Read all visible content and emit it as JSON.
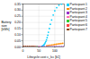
{
  "chart_data": {
    "type": "scatter",
    "xlabel": "Lifecycle cost c_lcc [k€]",
    "ylabel": "Battery\nsize\n[kWh]",
    "xlim": [
      0,
      130
    ],
    "ylim": [
      0,
      0.35
    ],
    "xticks": [
      0,
      50,
      100
    ],
    "yticks": [
      {
        "value": 0.0,
        "label": "0.00"
      },
      0.05,
      {
        "value": 0.1,
        "label": "0.10"
      },
      0.15,
      {
        "value": 0.2,
        "label": "0.20"
      },
      0.25,
      {
        "value": 0.3,
        "label": "0.30"
      },
      0.35
    ],
    "grid": true,
    "series": [
      {
        "name": "Participant 1",
        "color": "#00cfff",
        "x": [
          60,
          62,
          64,
          66,
          68,
          70,
          72,
          74,
          76,
          78,
          80,
          83,
          86,
          90,
          95,
          100,
          106,
          113,
          121
        ],
        "values": [
          0.005,
          0.008,
          0.012,
          0.018,
          0.025,
          0.034,
          0.045,
          0.058,
          0.075,
          0.095,
          0.12,
          0.15,
          0.185,
          0.22,
          0.26,
          0.295,
          0.32,
          0.34,
          0.35
        ]
      },
      {
        "name": "Participant 2",
        "color": "#ff8c00",
        "x": [
          75,
          80,
          85,
          90,
          95,
          100,
          105,
          110,
          115,
          120,
          125
        ],
        "values": [
          0.01,
          0.012,
          0.014,
          0.016,
          0.018,
          0.02,
          0.022,
          0.024,
          0.026,
          0.028,
          0.03
        ]
      },
      {
        "name": "Participant 3",
        "color": "#9932cc",
        "x": [
          2,
          8,
          14,
          20,
          26,
          32,
          38,
          44,
          50,
          56,
          62,
          68,
          74,
          80,
          86,
          92,
          98,
          104,
          110,
          116,
          122,
          128
        ],
        "values": [
          0.002,
          0.002,
          0.002,
          0.002,
          0.002,
          0.002,
          0.002,
          0.002,
          0.002,
          0.002,
          0.002,
          0.002,
          0.002,
          0.002,
          0.002,
          0.002,
          0.002,
          0.002,
          0.002,
          0.002,
          0.002,
          0.002
        ]
      },
      {
        "name": "Participant 4",
        "color": "#ff69b4",
        "x": [
          2,
          8,
          14,
          20,
          26,
          32,
          38,
          44,
          50
        ],
        "values": [
          0.002,
          0.002,
          0.002,
          0.002,
          0.002,
          0.002,
          0.002,
          0.002,
          0.002
        ]
      },
      {
        "name": "Participant 5",
        "color": "#32cd32",
        "x": [
          2,
          8,
          14,
          20,
          26,
          32,
          38,
          44
        ],
        "values": [
          0.002,
          0.002,
          0.002,
          0.002,
          0.002,
          0.002,
          0.002,
          0.002
        ]
      },
      {
        "name": "Participant 6",
        "color": "#ff4444",
        "x": [
          2,
          8,
          14,
          20,
          26,
          32,
          38
        ],
        "values": [
          0.002,
          0.002,
          0.002,
          0.002,
          0.002,
          0.002,
          0.002
        ]
      },
      {
        "name": "Participant 7",
        "color": "#8b4513",
        "x": [
          2,
          8,
          14,
          20,
          26,
          32
        ],
        "values": [
          0.002,
          0.002,
          0.002,
          0.002,
          0.002,
          0.002
        ]
      }
    ]
  }
}
